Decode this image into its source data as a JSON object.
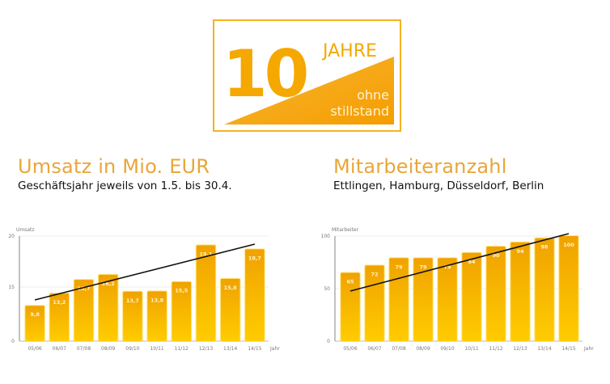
{
  "logo": {
    "number": "10",
    "word": "JAHRE",
    "line1": "ohne",
    "line2": "stillstand",
    "color": "#f5a800"
  },
  "left": {
    "title": "Umsatz in Mio. EUR",
    "subtitle": "Geschäftsjahr jeweils von 1.5. bis 30.4."
  },
  "right": {
    "title": "Mitarbeiteranzahl",
    "subtitle": "Ettlingen, Hamburg, Düsseldorf, Berlin"
  },
  "chart_data": [
    {
      "type": "bar",
      "title": "Umsatz in Mio. EUR",
      "ylabel": "Umsatz",
      "xlabel": "Jahr",
      "categories": [
        "05/06",
        "06/07",
        "07/08",
        "08/09",
        "09/10",
        "10/11",
        "11/12",
        "12/13",
        "13/14",
        "14/15"
      ],
      "values": [
        9.8,
        13.2,
        15.7,
        16.2,
        13.7,
        13.8,
        15.5,
        19.1,
        15.8,
        18.7
      ],
      "value_labels": [
        "9,8",
        "13,2",
        "15,7",
        "16,2",
        "13,7",
        "13,8",
        "15,5",
        "19,1",
        "15,8",
        "18,7"
      ],
      "yticks": [
        "0",
        "15",
        "20"
      ],
      "trendline": true,
      "bar_color": "#f5b000"
    },
    {
      "type": "bar",
      "title": "Mitarbeiteranzahl",
      "ylabel": "Mitarbeiter",
      "xlabel": "Jahr",
      "categories": [
        "05/06",
        "06/07",
        "07/08",
        "08/09",
        "09/10",
        "10/11",
        "11/12",
        "12/13",
        "13/14",
        "14/15"
      ],
      "values": [
        65,
        72,
        79,
        79,
        79,
        84,
        90,
        94,
        98,
        100
      ],
      "value_labels": [
        "65",
        "72",
        "79",
        "79",
        "79",
        "84",
        "90",
        "94",
        "98",
        "100"
      ],
      "yticks": [
        "0",
        "50",
        "100"
      ],
      "trendline": true,
      "bar_color": "#f5b000"
    }
  ]
}
